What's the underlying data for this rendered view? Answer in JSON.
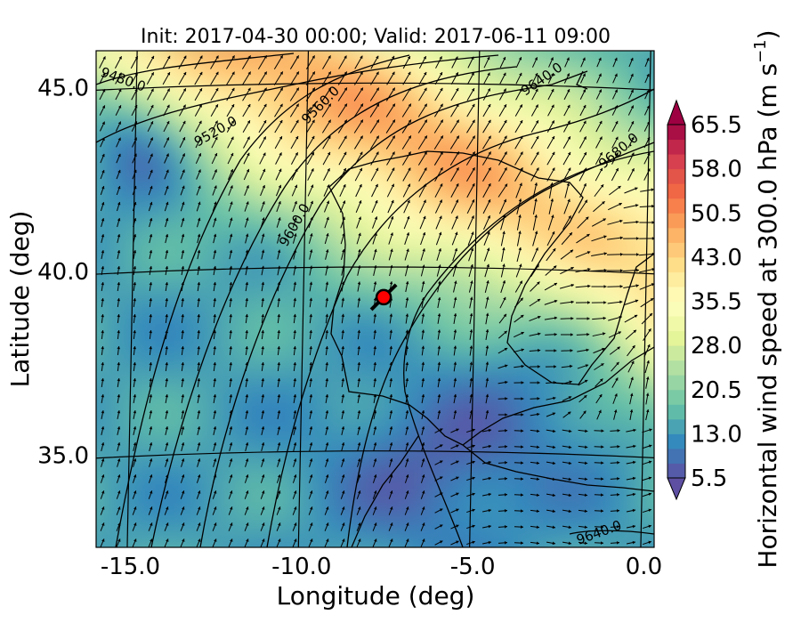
{
  "chart_data": {
    "type": "heatmap",
    "title": "Init: 2017-04-30 00:00; Valid: 2017-06-11 09:00",
    "xlabel": "Longitude (deg)",
    "ylabel": "Latitude (deg)",
    "xlim": [
      -16.0,
      0.3
    ],
    "ylim": [
      32.5,
      46.0
    ],
    "xticks": [
      {
        "value": -15.0,
        "label": "-15.0"
      },
      {
        "value": -10.0,
        "label": "-10.0"
      },
      {
        "value": -5.0,
        "label": "-5.0"
      },
      {
        "value": 0.0,
        "label": "0.0"
      }
    ],
    "yticks": [
      {
        "value": 45.0,
        "label": "45.0"
      },
      {
        "value": 40.0,
        "label": "40.0"
      },
      {
        "value": 35.0,
        "label": "35.0"
      }
    ],
    "colorbar": {
      "label": "Horizontal wind speed at 300.0 hPa (m s",
      "label_sup": "−1",
      "label_end": ")",
      "min": 5.5,
      "max": 65.5,
      "step": 2.5,
      "ticks": [
        "5.5",
        "13.0",
        "20.5",
        "28.0",
        "35.5",
        "43.0",
        "50.5",
        "58.0",
        "65.5"
      ],
      "colormap": "Spectral_r",
      "extend": "both"
    },
    "contour_labels": [
      "9480.0",
      "9520.0",
      "9560.0",
      "9600.0",
      "9640.0",
      "9680.0",
      "9640.0"
    ],
    "marker": {
      "lon": -7.6,
      "lat": 39.3,
      "color": "#ff0000"
    },
    "vectors": "wind barbs/arrows, predominantly south-westerly to southerly flow",
    "grid": true
  }
}
